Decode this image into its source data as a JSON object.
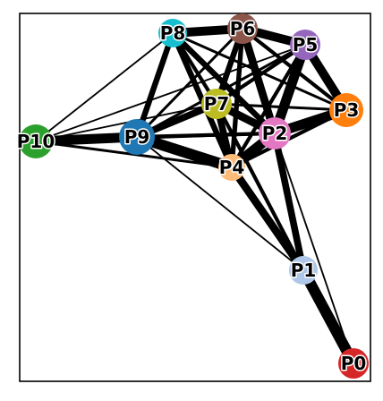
{
  "graph": {
    "nodes": [
      {
        "id": "P0",
        "label": "P0",
        "color": "#d62728"
      },
      {
        "id": "P1",
        "label": "P1",
        "color": "#aec7e8"
      },
      {
        "id": "P2",
        "label": "P2",
        "color": "#e377c2"
      },
      {
        "id": "P3",
        "label": "P3",
        "color": "#ff7f0e"
      },
      {
        "id": "P4",
        "label": "P4",
        "color": "#ffbb78"
      },
      {
        "id": "P5",
        "label": "P5",
        "color": "#9467bd"
      },
      {
        "id": "P6",
        "label": "P6",
        "color": "#8c564b"
      },
      {
        "id": "P7",
        "label": "P7",
        "color": "#bcbd22"
      },
      {
        "id": "P8",
        "label": "P8",
        "color": "#17becf"
      },
      {
        "id": "P9",
        "label": "P9",
        "color": "#1f77b4"
      },
      {
        "id": "P10",
        "label": "P10",
        "color": "#2ca02c"
      }
    ],
    "edges": [
      {
        "source": "P0",
        "target": "P1",
        "weight": 10
      },
      {
        "source": "P0",
        "target": "P2",
        "weight": 1
      },
      {
        "source": "P1",
        "target": "P4",
        "weight": 7
      },
      {
        "source": "P1",
        "target": "P2",
        "weight": 6
      },
      {
        "source": "P1",
        "target": "P7",
        "weight": 3
      },
      {
        "source": "P1",
        "target": "P9",
        "weight": 1
      },
      {
        "source": "P2",
        "target": "P4",
        "weight": 9
      },
      {
        "source": "P2",
        "target": "P3",
        "weight": 9
      },
      {
        "source": "P2",
        "target": "P5",
        "weight": 9
      },
      {
        "source": "P2",
        "target": "P6",
        "weight": 7
      },
      {
        "source": "P2",
        "target": "P7",
        "weight": 7
      },
      {
        "source": "P2",
        "target": "P8",
        "weight": 5
      },
      {
        "source": "P2",
        "target": "P9",
        "weight": 3
      },
      {
        "source": "P3",
        "target": "P5",
        "weight": 8
      },
      {
        "source": "P3",
        "target": "P6",
        "weight": 3
      },
      {
        "source": "P3",
        "target": "P7",
        "weight": 2
      },
      {
        "source": "P3",
        "target": "P8",
        "weight": 2
      },
      {
        "source": "P3",
        "target": "P4",
        "weight": 3
      },
      {
        "source": "P5",
        "target": "P6",
        "weight": 8
      },
      {
        "source": "P5",
        "target": "P7",
        "weight": 3
      },
      {
        "source": "P5",
        "target": "P9",
        "weight": 2
      },
      {
        "source": "P5",
        "target": "P4",
        "weight": 3
      },
      {
        "source": "P6",
        "target": "P8",
        "weight": 8
      },
      {
        "source": "P6",
        "target": "P7",
        "weight": 5
      },
      {
        "source": "P6",
        "target": "P9",
        "weight": 2
      },
      {
        "source": "P6",
        "target": "P4",
        "weight": 4
      },
      {
        "source": "P7",
        "target": "P8",
        "weight": 3
      },
      {
        "source": "P7",
        "target": "P9",
        "weight": 6
      },
      {
        "source": "P7",
        "target": "P4",
        "weight": 6
      },
      {
        "source": "P8",
        "target": "P9",
        "weight": 5
      },
      {
        "source": "P8",
        "target": "P4",
        "weight": 5
      },
      {
        "source": "P8",
        "target": "P10",
        "weight": 1
      },
      {
        "source": "P9",
        "target": "P10",
        "weight": 9
      },
      {
        "source": "P9",
        "target": "P4",
        "weight": 10
      },
      {
        "source": "P10",
        "target": "P2",
        "weight": 2
      },
      {
        "source": "P10",
        "target": "P5",
        "weight": 1
      },
      {
        "source": "P10",
        "target": "P7",
        "weight": 1
      },
      {
        "source": "P10",
        "target": "P4",
        "weight": 2
      }
    ]
  }
}
